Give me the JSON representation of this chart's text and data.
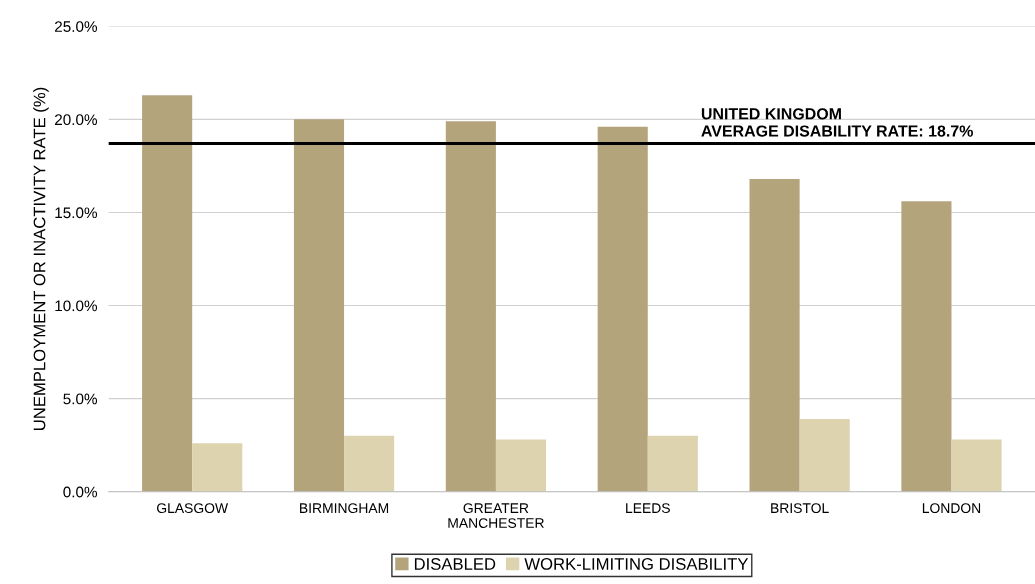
{
  "chart_data": {
    "type": "bar",
    "ylabel": "UNEMPLOYMENT OR INACTIVITY RATE (%)",
    "categories": [
      "GLASGOW",
      "BIRMINGHAM",
      "GREATER\nMANCHESTER",
      "LEEDS",
      "BRISTOL",
      "LONDON"
    ],
    "series": [
      {
        "name": "DISABLED",
        "color": "#b3a47c",
        "values": [
          21.3,
          20.0,
          19.9,
          19.6,
          16.8,
          15.6
        ]
      },
      {
        "name": "WORK-LIMITING DISABILITY",
        "color": "#ddd3af",
        "values": [
          2.6,
          3.0,
          2.8,
          3.0,
          3.9,
          2.8
        ]
      }
    ],
    "ylim": [
      0,
      25
    ],
    "yticks": [
      {
        "value": 0,
        "label": "0.0%"
      },
      {
        "value": 5,
        "label": "5.0%"
      },
      {
        "value": 10,
        "label": "10.0%"
      },
      {
        "value": 15,
        "label": "15.0%"
      },
      {
        "value": 20,
        "label": "20.0%"
      },
      {
        "value": 25,
        "label": "25.0%"
      }
    ],
    "ref_lines": [
      {
        "axis": "y",
        "value": 18.7,
        "label": "UNITED KINGDOM\nAVERAGE DISABILITY RATE: 18.7%",
        "color": "#000000"
      }
    ],
    "grid": "y",
    "legend": "bottom"
  }
}
